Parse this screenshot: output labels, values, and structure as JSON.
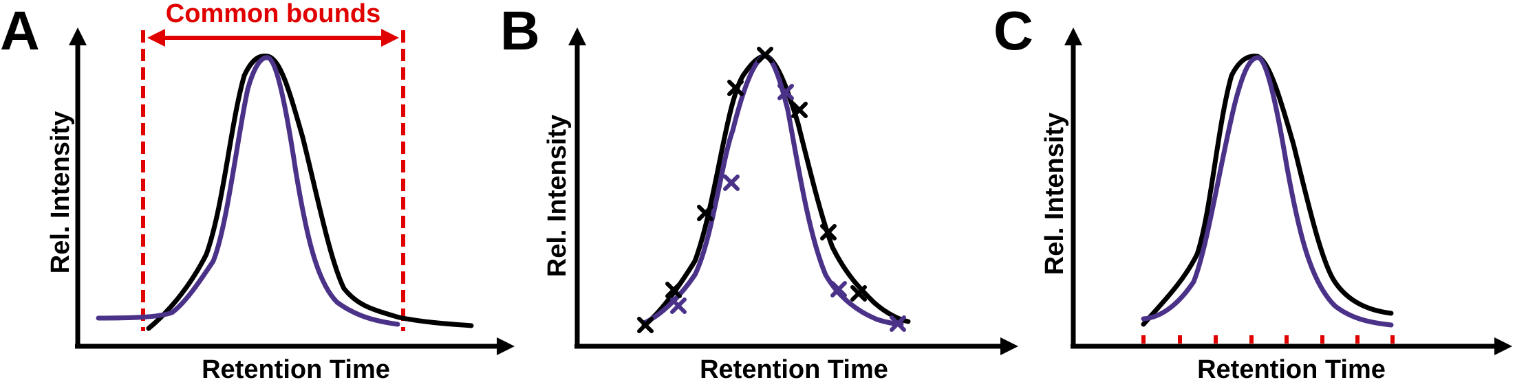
{
  "colors": {
    "axis": "#000000",
    "black_trace": "#000000",
    "purple_trace": "#4b3289",
    "red": "#e00000"
  },
  "panels": [
    {
      "letter": "A",
      "ylabel": "Rel. Intensity",
      "xlabel": "Retention Time"
    },
    {
      "letter": "B",
      "ylabel": "Rel. Intensity",
      "xlabel": "Retention Time"
    },
    {
      "letter": "C",
      "ylabel": "Rel. Intensity",
      "xlabel": "Retention Time"
    }
  ],
  "panel_a": {
    "bounds_label": "Common bounds"
  }
}
